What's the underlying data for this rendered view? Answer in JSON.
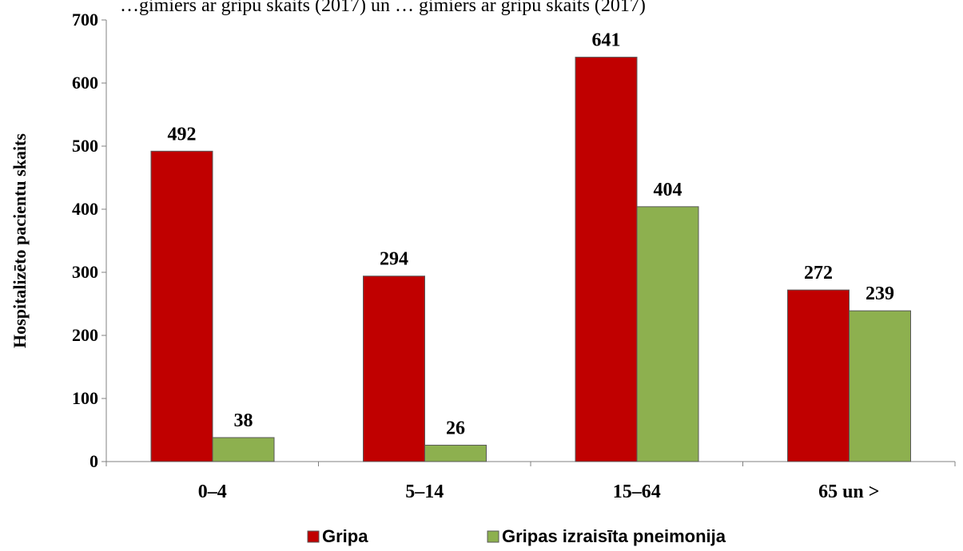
{
  "header_text": "…gimiers ar gripu skaits (2017) un … gimiers ar gripu skaits (2017)",
  "chart_data": {
    "type": "bar",
    "title": "",
    "xlabel": "",
    "ylabel": "Hospitalizēto pacientu skaits",
    "categories": [
      "0–4",
      "5–14",
      "15–64",
      "65 un >"
    ],
    "series": [
      {
        "name": "Gripa",
        "values": [
          492,
          294,
          641,
          272
        ],
        "color": "#c00000"
      },
      {
        "name": "Gripas izraisīta pneimonija",
        "values": [
          38,
          26,
          404,
          239
        ],
        "color": "#8db04f"
      }
    ],
    "ylim": [
      0,
      700
    ],
    "yticks": [
      0,
      100,
      200,
      300,
      400,
      500,
      600,
      700
    ],
    "grid": false,
    "legend": "bottom-center"
  }
}
